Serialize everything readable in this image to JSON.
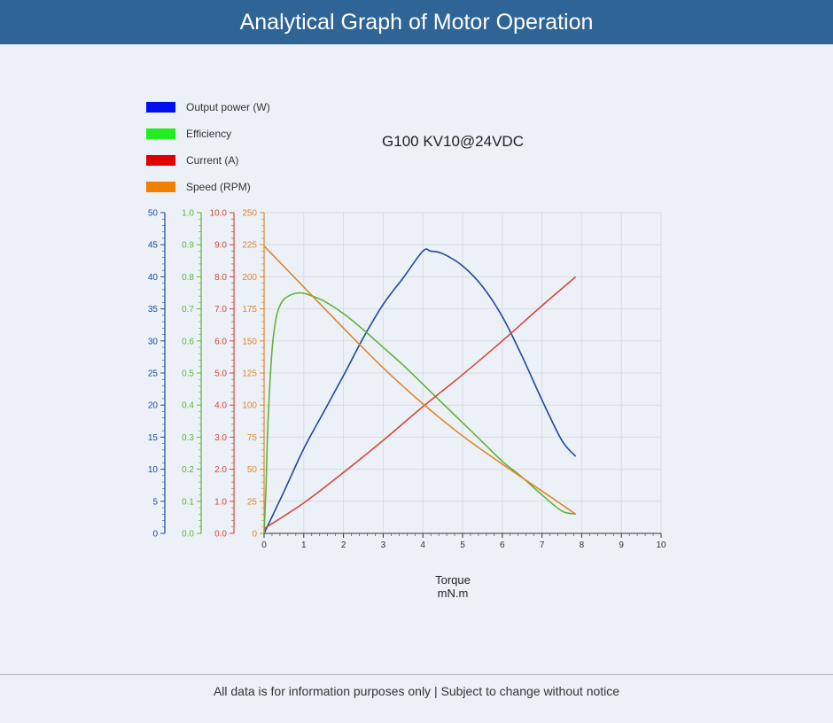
{
  "header": {
    "title": "Analytical Graph of Motor Operation"
  },
  "footer": {
    "disclaimer": "All data is for information purposes only | Subject to change without notice"
  },
  "colors": {
    "header_bg": "#2f6497",
    "power": "#1c4a9c",
    "efficiency": "#5fb33a",
    "current": "#d9453c",
    "speed": "#e0862a",
    "legend_power": "#0011ee",
    "legend_efficiency": "#22ee22",
    "legend_current": "#e00000",
    "legend_speed": "#f08000"
  },
  "chart_data": {
    "type": "line",
    "title": "G100 KV10@24VDC",
    "xlabel": "Torque",
    "xunit": "mN.m",
    "xlim": [
      0,
      10
    ],
    "xticks": [
      "0",
      "1",
      "2",
      "3",
      "4",
      "5",
      "6",
      "7",
      "8",
      "9",
      "10"
    ],
    "grid": true,
    "legend_placement": "top-left",
    "axes": [
      {
        "id": "power",
        "color_key": "power",
        "ticks": [
          "0",
          "5",
          "10",
          "15",
          "20",
          "25",
          "30",
          "35",
          "40",
          "45",
          "50"
        ],
        "ylim": [
          0,
          50
        ]
      },
      {
        "id": "efficiency",
        "color_key": "efficiency",
        "ticks": [
          "0.0",
          "0.1",
          "0.2",
          "0.3",
          "0.4",
          "0.5",
          "0.6",
          "0.7",
          "0.8",
          "0.9",
          "1.0"
        ],
        "ylim": [
          0,
          1
        ]
      },
      {
        "id": "current",
        "color_key": "current",
        "ticks": [
          "0.0",
          "1.0",
          "2.0",
          "3.0",
          "4.0",
          "5.0",
          "6.0",
          "7.0",
          "8.0",
          "9.0",
          "10.0"
        ],
        "ylim": [
          0,
          10
        ]
      },
      {
        "id": "speed",
        "color_key": "speed",
        "ticks": [
          "0",
          "25",
          "50",
          "75",
          "100",
          "125",
          "150",
          "175",
          "200",
          "225",
          "250"
        ],
        "ylim": [
          0,
          250
        ]
      }
    ],
    "series": [
      {
        "name": "Output power (W)",
        "axis": "power",
        "color_key": "power",
        "legend_color_key": "legend_power",
        "x": [
          0,
          0.5,
          1,
          1.5,
          2,
          2.5,
          3,
          3.5,
          4,
          4.2,
          4.5,
          5,
          5.5,
          6,
          6.5,
          7,
          7.5,
          7.85
        ],
        "y": [
          0,
          6.5,
          13.2,
          18.9,
          24.6,
          30.5,
          35.7,
          39.8,
          44.0,
          44.0,
          43.6,
          41.7,
          38.5,
          33.8,
          27.6,
          20.8,
          14.5,
          12.0
        ]
      },
      {
        "name": "Efficiency",
        "axis": "efficiency",
        "color_key": "efficiency",
        "legend_color_key": "legend_efficiency",
        "x": [
          0,
          0.05,
          0.1,
          0.2,
          0.3,
          0.4,
          0.5,
          0.7,
          0.9,
          1.1,
          1.5,
          2,
          2.5,
          3,
          3.5,
          4,
          4.5,
          5,
          5.5,
          6,
          6.5,
          7,
          7.5,
          7.85
        ],
        "y": [
          0,
          0.15,
          0.35,
          0.57,
          0.67,
          0.71,
          0.73,
          0.745,
          0.75,
          0.745,
          0.725,
          0.685,
          0.635,
          0.58,
          0.525,
          0.465,
          0.405,
          0.345,
          0.285,
          0.225,
          0.175,
          0.12,
          0.07,
          0.06
        ]
      },
      {
        "name": "Current (A)",
        "axis": "current",
        "color_key": "current",
        "legend_color_key": "legend_current",
        "x": [
          0,
          1,
          2,
          3,
          4,
          5,
          6,
          7,
          7.85
        ],
        "y": [
          0.15,
          0.95,
          1.9,
          2.9,
          3.95,
          4.95,
          6.0,
          7.1,
          8.0
        ]
      },
      {
        "name": "Speed (RPM)",
        "axis": "speed",
        "color_key": "speed",
        "legend_color_key": "legend_speed",
        "x": [
          0,
          1,
          2,
          3,
          4,
          5,
          6,
          7,
          7.85
        ],
        "y": [
          224,
          192,
          160,
          129,
          101,
          76,
          54,
          33,
          15
        ]
      }
    ]
  }
}
